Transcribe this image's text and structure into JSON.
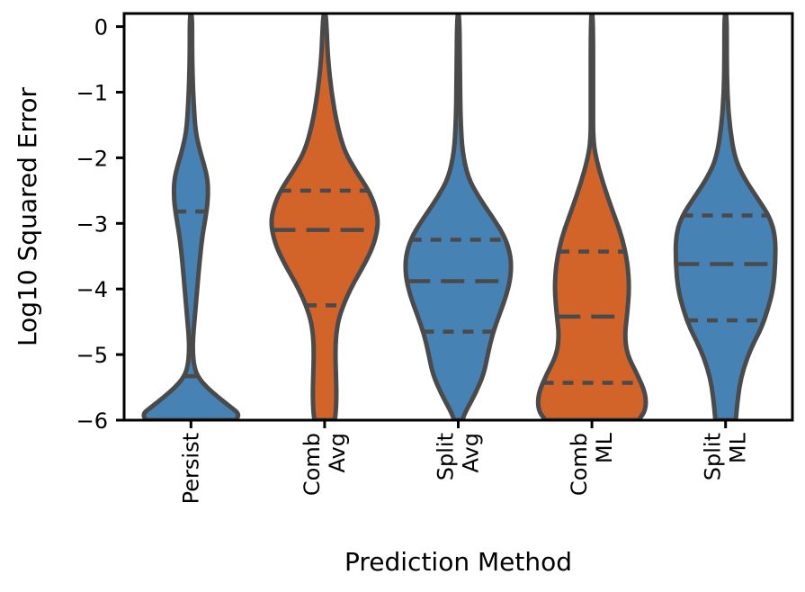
{
  "chart_data": {
    "type": "violin",
    "title": "",
    "xlabel": "Prediction Method",
    "ylabel": "Log10 Squared Error",
    "ylim": [
      -6,
      0.2
    ],
    "yticks": [
      0,
      -1,
      -2,
      -3,
      -4,
      -5,
      -6
    ],
    "ytick_labels": [
      "0",
      "−1",
      "−2",
      "−3",
      "−4",
      "−5",
      "−6"
    ],
    "grid": false,
    "inner": "quartile",
    "categories": [
      {
        "label_lines": [
          "Persist"
        ],
        "color": "#4682b4",
        "quartiles": [
          -5.33,
          -5.33,
          -2.82
        ],
        "profile": [
          [
            -6.0,
            0.8
          ],
          [
            -5.9,
            0.85
          ],
          [
            -5.8,
            0.7
          ],
          [
            -5.65,
            0.48
          ],
          [
            -5.5,
            0.28
          ],
          [
            -5.35,
            0.13
          ],
          [
            -5.2,
            0.06
          ],
          [
            -4.95,
            0.03
          ],
          [
            -4.7,
            0.04
          ],
          [
            -4.4,
            0.07
          ],
          [
            -4.0,
            0.11
          ],
          [
            -3.6,
            0.15
          ],
          [
            -3.2,
            0.2
          ],
          [
            -2.9,
            0.26
          ],
          [
            -2.65,
            0.3
          ],
          [
            -2.35,
            0.3
          ],
          [
            -2.1,
            0.23
          ],
          [
            -1.9,
            0.16
          ],
          [
            -1.6,
            0.08
          ],
          [
            -1.2,
            0.05
          ],
          [
            -0.8,
            0.03
          ],
          [
            -0.4,
            0.02
          ],
          [
            0.2,
            0.02
          ]
        ]
      },
      {
        "label_lines": [
          "Comb",
          "Avg"
        ],
        "color": "#d2642a",
        "quartiles": [
          -4.25,
          -3.1,
          -2.5
        ],
        "profile": [
          [
            -6.0,
            0.18
          ],
          [
            -5.85,
            0.2
          ],
          [
            -5.6,
            0.21
          ],
          [
            -5.3,
            0.2
          ],
          [
            -5.0,
            0.19
          ],
          [
            -4.7,
            0.2
          ],
          [
            -4.4,
            0.26
          ],
          [
            -4.0,
            0.45
          ],
          [
            -3.6,
            0.72
          ],
          [
            -3.3,
            0.88
          ],
          [
            -3.0,
            0.95
          ],
          [
            -2.75,
            0.9
          ],
          [
            -2.5,
            0.78
          ],
          [
            -2.2,
            0.55
          ],
          [
            -1.9,
            0.35
          ],
          [
            -1.5,
            0.22
          ],
          [
            -1.0,
            0.12
          ],
          [
            -0.5,
            0.06
          ],
          [
            -0.1,
            0.04
          ],
          [
            0.2,
            0.02
          ]
        ]
      },
      {
        "label_lines": [
          "Split",
          "Avg"
        ],
        "color": "#4682b4",
        "quartiles": [
          -4.65,
          -3.88,
          -3.25
        ],
        "profile": [
          [
            -6.0,
            0.07
          ],
          [
            -5.85,
            0.14
          ],
          [
            -5.6,
            0.3
          ],
          [
            -5.3,
            0.45
          ],
          [
            -5.0,
            0.52
          ],
          [
            -4.7,
            0.6
          ],
          [
            -4.4,
            0.72
          ],
          [
            -4.1,
            0.85
          ],
          [
            -3.8,
            0.93
          ],
          [
            -3.5,
            0.93
          ],
          [
            -3.2,
            0.82
          ],
          [
            -2.9,
            0.6
          ],
          [
            -2.6,
            0.36
          ],
          [
            -2.3,
            0.17
          ],
          [
            -1.9,
            0.07
          ],
          [
            -1.4,
            0.04
          ],
          [
            -0.8,
            0.03
          ],
          [
            0.2,
            0.02
          ]
        ]
      },
      {
        "label_lines": [
          "Comb",
          "ML"
        ],
        "color": "#d2642a",
        "quartiles": [
          -5.43,
          -4.42,
          -3.43
        ],
        "profile": [
          [
            -6.0,
            0.82
          ],
          [
            -5.85,
            0.95
          ],
          [
            -5.6,
            0.95
          ],
          [
            -5.3,
            0.8
          ],
          [
            -5.0,
            0.62
          ],
          [
            -4.7,
            0.58
          ],
          [
            -4.4,
            0.62
          ],
          [
            -4.0,
            0.66
          ],
          [
            -3.6,
            0.63
          ],
          [
            -3.2,
            0.53
          ],
          [
            -2.8,
            0.36
          ],
          [
            -2.4,
            0.2
          ],
          [
            -2.0,
            0.07
          ],
          [
            -1.7,
            0.02
          ],
          [
            -1.2,
            0.02
          ],
          [
            0.2,
            0.02
          ]
        ]
      },
      {
        "label_lines": [
          "Split",
          "ML"
        ],
        "color": "#4682b4",
        "quartiles": [
          -4.48,
          -3.62,
          -2.88
        ],
        "profile": [
          [
            -6.0,
            0.18
          ],
          [
            -5.8,
            0.2
          ],
          [
            -5.5,
            0.24
          ],
          [
            -5.2,
            0.32
          ],
          [
            -4.9,
            0.45
          ],
          [
            -4.6,
            0.63
          ],
          [
            -4.3,
            0.75
          ],
          [
            -4.0,
            0.84
          ],
          [
            -3.6,
            0.88
          ],
          [
            -3.2,
            0.88
          ],
          [
            -2.9,
            0.78
          ],
          [
            -2.6,
            0.55
          ],
          [
            -2.3,
            0.32
          ],
          [
            -2.0,
            0.16
          ],
          [
            -1.5,
            0.07
          ],
          [
            -1.0,
            0.03
          ],
          [
            -0.5,
            0.02
          ],
          [
            0.2,
            0.02
          ]
        ]
      }
    ]
  }
}
